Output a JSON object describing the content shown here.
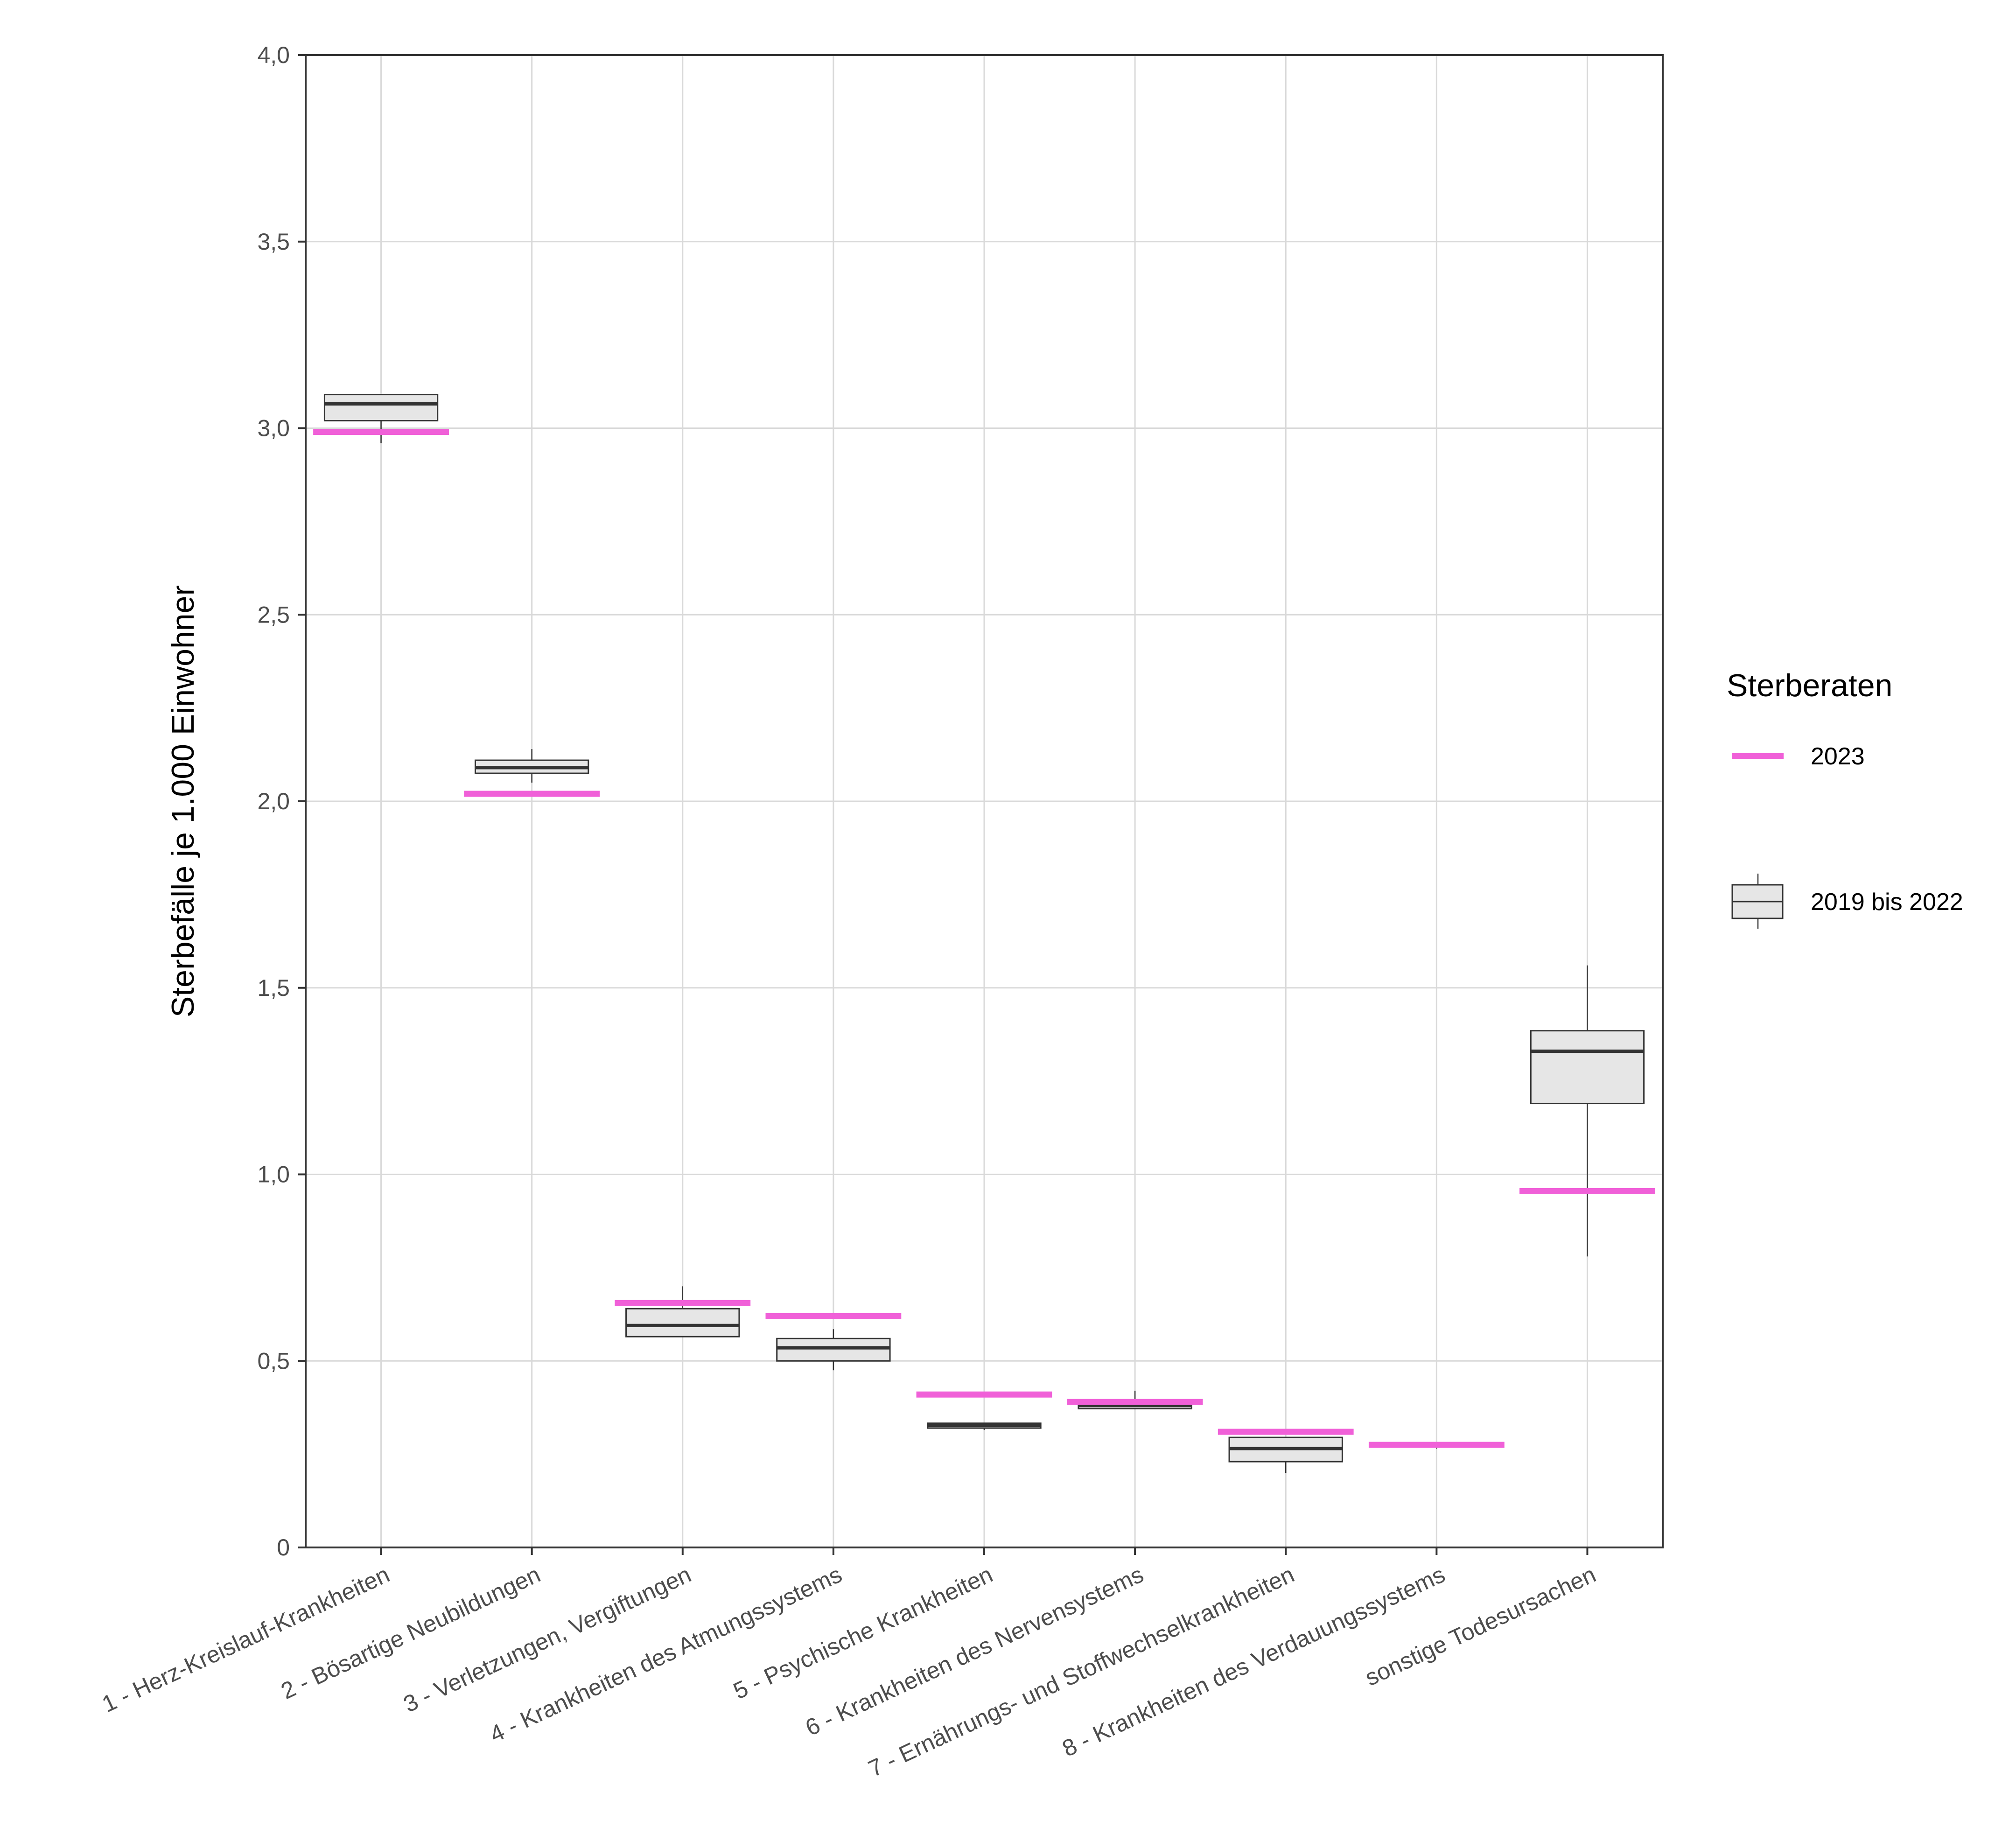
{
  "chart_data": {
    "type": "boxplot",
    "ylabel": "Sterbefälle je 1.000 Einwohner",
    "xlabel": "",
    "ylim": [
      0,
      4.0
    ],
    "yticks": [
      {
        "value": 0,
        "label": "0"
      },
      {
        "value": 0.5,
        "label": "0,5"
      },
      {
        "value": 1.0,
        "label": "1,0"
      },
      {
        "value": 1.5,
        "label": "1,5"
      },
      {
        "value": 2.0,
        "label": "2,0"
      },
      {
        "value": 2.5,
        "label": "2,5"
      },
      {
        "value": 3.0,
        "label": "3,0"
      },
      {
        "value": 3.5,
        "label": "3,5"
      },
      {
        "value": 4.0,
        "label": "4,0"
      }
    ],
    "grid": true,
    "categories": [
      "1 - Herz-Kreislauf-Krankheiten",
      "2 - Bösartige Neubildungen",
      "3 - Verletzungen, Vergiftungen",
      "4 - Krankheiten des Atmungssystems",
      "5 - Psychische Krankheiten",
      "6 - Krankheiten des Nervensystems",
      "7 - Ernährungs- und Stoffwechselkrankheiten",
      "8 - Krankheiten des Verdauungssystems",
      "sonstige Todesursachen"
    ],
    "series": [
      {
        "name": "2019 bis 2022",
        "kind": "box",
        "color": "#e6e6e6",
        "stroke": "#333333",
        "boxes": [
          {
            "min": 2.96,
            "q1": 3.02,
            "median": 3.065,
            "q3": 3.09,
            "max": 3.09
          },
          {
            "min": 2.05,
            "q1": 2.075,
            "median": 2.09,
            "q3": 2.11,
            "max": 2.14
          },
          {
            "min": 0.565,
            "q1": 0.565,
            "median": 0.595,
            "q3": 0.64,
            "max": 0.7
          },
          {
            "min": 0.475,
            "q1": 0.5,
            "median": 0.535,
            "q3": 0.56,
            "max": 0.585
          },
          {
            "min": 0.315,
            "q1": 0.32,
            "median": 0.327,
            "q3": 0.333,
            "max": 0.333
          },
          {
            "min": 0.372,
            "q1": 0.372,
            "median": 0.38,
            "q3": 0.385,
            "max": 0.42
          },
          {
            "min": 0.2,
            "q1": 0.23,
            "median": 0.265,
            "q3": 0.295,
            "max": 0.295
          },
          {
            "min": 0.265,
            "q1": 0.27,
            "median": 0.273,
            "q3": 0.276,
            "max": 0.28
          },
          {
            "min": 0.78,
            "q1": 1.19,
            "median": 1.33,
            "q3": 1.385,
            "max": 1.56
          }
        ]
      },
      {
        "name": "2023",
        "kind": "segment",
        "color": "#f060d8",
        "values": [
          2.99,
          2.02,
          0.655,
          0.62,
          0.41,
          0.39,
          0.31,
          0.275,
          0.955
        ]
      }
    ],
    "legend": {
      "title": "Sterberaten",
      "position": "right",
      "entries": [
        "2023",
        "2019 bis 2022"
      ]
    }
  }
}
